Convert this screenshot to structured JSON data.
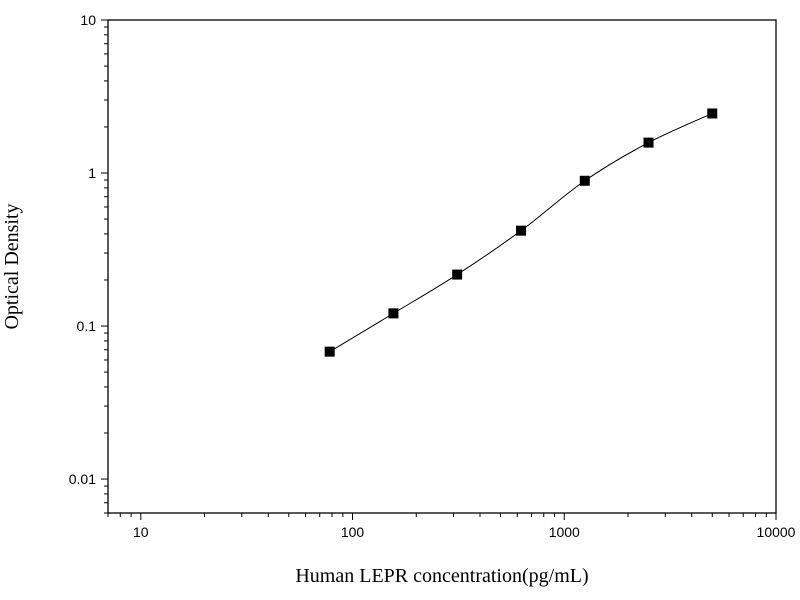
{
  "chart_data": {
    "type": "scatter",
    "title": "",
    "xlabel": "Human LEPR concentration(pg/mL)",
    "ylabel": "Optical Density",
    "xscale": "log",
    "yscale": "log",
    "xlim": [
      7,
      10000
    ],
    "ylim": [
      0.006,
      10
    ],
    "x_ticks": [
      10,
      100,
      1000,
      10000
    ],
    "x_tick_labels": [
      "10",
      "100",
      "1000",
      "10000"
    ],
    "y_ticks": [
      0.01,
      0.1,
      1,
      10
    ],
    "y_tick_labels": [
      "0.01",
      "0.1",
      "1",
      "10"
    ],
    "grid": false,
    "legend": "none",
    "series": [
      {
        "x": [
          78,
          156,
          312,
          625,
          1250,
          2500,
          5000
        ],
        "y": [
          0.068,
          0.121,
          0.217,
          0.42,
          0.89,
          1.58,
          2.45
        ]
      }
    ],
    "fit_curve": {
      "type": "smooth",
      "color": "#000000"
    },
    "marker": {
      "shape": "square",
      "color": "#000000"
    }
  }
}
